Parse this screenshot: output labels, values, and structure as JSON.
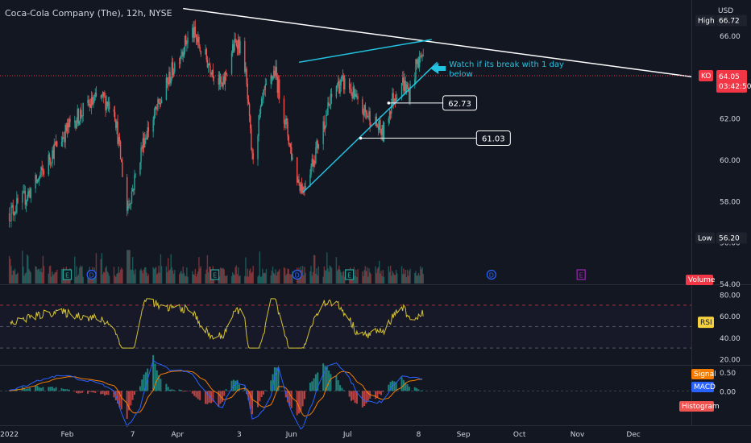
{
  "header": {
    "title": "Coca-Cola Company (The), 12h, NYSE"
  },
  "currency": "USD",
  "chart_data": {
    "type": "candlestick",
    "symbol": "KO",
    "price_axis": {
      "ylim": [
        54,
        67.4
      ],
      "ticks": [
        "66.00",
        "64.00",
        "62.00",
        "60.00",
        "58.00",
        "56.00",
        "54.00"
      ],
      "tick_values": [
        66,
        64,
        62,
        60,
        58,
        56,
        54
      ]
    },
    "time_axis": {
      "labels": [
        "2022",
        "Feb",
        "7",
        "Apr",
        "3",
        "Jun",
        "Jul",
        "8",
        "Sep",
        "Oct",
        "Nov",
        "Dec"
      ],
      "label_days": [
        0,
        31,
        66,
        90,
        123,
        151,
        181,
        219,
        243,
        273,
        304,
        334
      ],
      "xlim": [
        -5,
        365
      ],
      "data_end_day": 223
    },
    "current_price": {
      "symbol": "KO",
      "price": "64.05",
      "countdown": "03:42:50",
      "value": 64.05
    },
    "high": {
      "label": "High",
      "value": "66.72"
    },
    "low": {
      "label": "Low",
      "value": "56.20"
    },
    "price_path": [
      [
        0,
        57.4
      ],
      [
        8,
        58.1
      ],
      [
        16,
        59.1
      ],
      [
        24,
        60.5
      ],
      [
        32,
        61.6
      ],
      [
        40,
        62.4
      ],
      [
        48,
        63.0
      ],
      [
        56,
        62.6
      ],
      [
        63,
        57.6
      ],
      [
        66,
        58.6
      ],
      [
        72,
        61.0
      ],
      [
        80,
        62.6
      ],
      [
        88,
        64.5
      ],
      [
        94,
        65.6
      ],
      [
        98,
        66.2
      ],
      [
        103,
        65.2
      ],
      [
        110,
        64.2
      ],
      [
        114,
        63.4
      ],
      [
        118,
        65.0
      ],
      [
        122,
        65.8
      ],
      [
        126,
        64.6
      ],
      [
        130,
        60.0
      ],
      [
        136,
        63.0
      ],
      [
        142,
        64.3
      ],
      [
        147,
        62.2
      ],
      [
        153,
        59.3
      ],
      [
        157,
        58.6
      ],
      [
        163,
        60.1
      ],
      [
        169,
        62.0
      ],
      [
        175,
        63.6
      ],
      [
        181,
        63.7
      ],
      [
        187,
        62.5
      ],
      [
        194,
        62.0
      ],
      [
        200,
        61.2
      ],
      [
        205,
        62.9
      ],
      [
        210,
        63.8
      ],
      [
        214,
        63.2
      ],
      [
        218,
        64.6
      ],
      [
        221,
        65.1
      ],
      [
        223,
        64.05
      ]
    ],
    "trendlines": [
      {
        "color": "#ffffff",
        "from": [
          93,
          67.3
        ],
        "to": [
          365,
          64.0
        ]
      },
      {
        "color": "#22c3e0",
        "from": [
          155,
          64.7
        ],
        "to": [
          226,
          65.8
        ]
      },
      {
        "color": "#22c3e0",
        "from": [
          157,
          58.4
        ],
        "to": [
          229,
          64.7
        ]
      }
    ],
    "level_annotations": [
      {
        "label": "62.73",
        "value": 62.73,
        "from_day": 203,
        "to_day": 232
      },
      {
        "label": "61.03",
        "value": 61.03,
        "from_day": 188,
        "to_day": 250
      }
    ],
    "note": {
      "text_line1": "Watch if its break with 1 day",
      "text_line2": "below",
      "day": 231,
      "price": 64.4
    },
    "event_markers": [
      {
        "type": "E",
        "day": 31
      },
      {
        "type": "D",
        "day": 44
      },
      {
        "type": "E",
        "day": 110
      },
      {
        "type": "D",
        "day": 154
      },
      {
        "type": "E",
        "day": 182
      },
      {
        "type": "D",
        "day": 258
      },
      {
        "type": "E",
        "day": 306
      }
    ],
    "volume": {
      "label": "Volume"
    },
    "rsi": {
      "label": "RSI",
      "ylim": [
        15,
        88
      ],
      "ticks": [
        "80.00",
        "60.00",
        "40.00",
        "20.00"
      ],
      "tick_values": [
        80,
        60,
        40,
        20
      ],
      "upper_band": 70,
      "middle": 50,
      "lower_band": 30
    },
    "macd": {
      "ticks": [
        "0.50",
        "0.00"
      ],
      "tick_values": [
        0.5,
        0.0
      ],
      "ylim": [
        -0.85,
        0.65
      ],
      "legend": [
        {
          "name": "Signal",
          "color": "#f57c00"
        },
        {
          "name": "MACD",
          "color": "#2962ff"
        },
        {
          "name": "Histogram",
          "color": "#ef5350"
        }
      ]
    }
  },
  "colors": {
    "background": "#131722",
    "up": "#26a69a",
    "down": "#ef5350",
    "grid": "#1e222d",
    "axis_text": "#d1d4dc",
    "rsi_line": "#d4c234",
    "price_tag": "#f23645",
    "tag_dark": "#1e222d"
  }
}
